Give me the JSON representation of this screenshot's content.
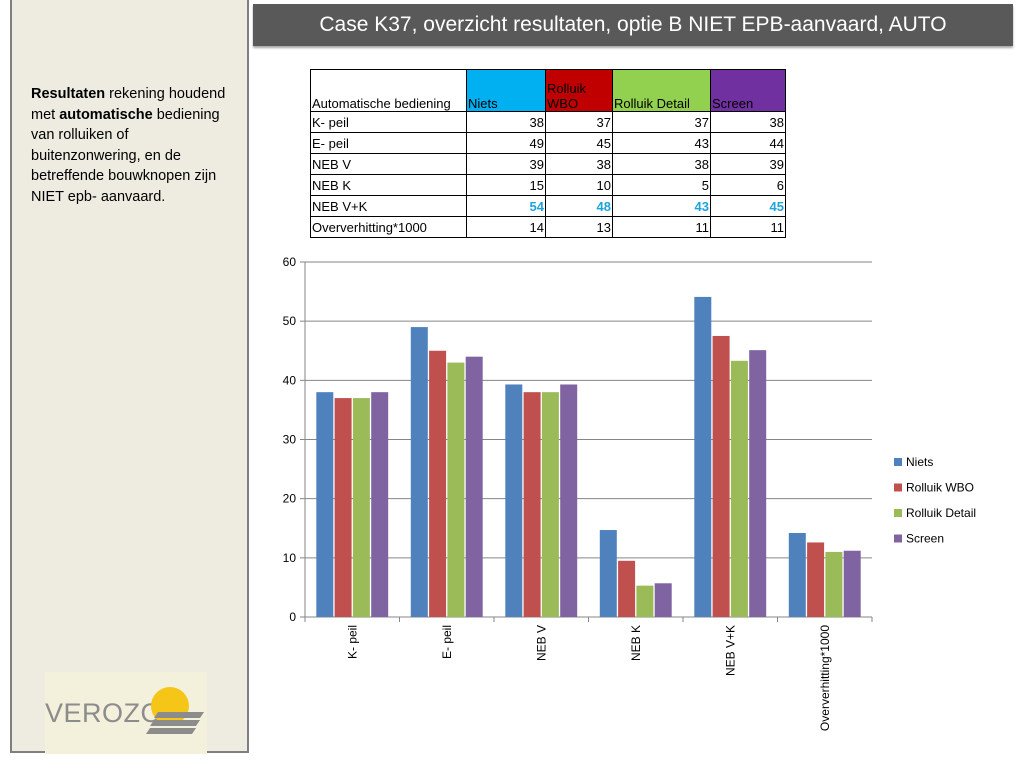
{
  "title": "Case K37, overzicht resultaten, optie B NIET EPB-aanvaard, AUTO",
  "sidebar": {
    "text_parts": [
      {
        "text": "Resultaten",
        "bold": true
      },
      {
        "text": " rekening houdend met ",
        "bold": false
      },
      {
        "text": "automatische",
        "bold": true
      },
      {
        "text": " bediening van rolluiken of buitenzonwering, en de betreffende bouwknopen zijn NIET epb- aanvaard.",
        "bold": false
      }
    ]
  },
  "logo": {
    "text": "VEROZO",
    "registered": "®"
  },
  "table": {
    "header": [
      "Automatische bediening",
      "Niets",
      "Rolluik WBO",
      "Rolluik Detail",
      "Screen"
    ],
    "header_colors": [
      "#ffffff",
      "#00b0f0",
      "#c00000",
      "#92d050",
      "#7030a0"
    ],
    "rows": [
      {
        "label": "K- peil",
        "values": [
          "38",
          "37",
          "37",
          "38"
        ],
        "highlight": false
      },
      {
        "label": "E- peil",
        "values": [
          "49",
          "45",
          "43",
          "44"
        ],
        "highlight": false
      },
      {
        "label": "NEB V",
        "values": [
          "39",
          "38",
          "38",
          "39"
        ],
        "highlight": false
      },
      {
        "label": "NEB K",
        "values": [
          "15",
          "10",
          "5",
          "6"
        ],
        "highlight": false
      },
      {
        "label": "NEB V+K",
        "values": [
          "54",
          "48",
          "43",
          "45"
        ],
        "highlight": true
      },
      {
        "label": "Oververhitting*1000",
        "values": [
          "14",
          "13",
          "11",
          "11"
        ],
        "highlight": false
      }
    ]
  },
  "chart_data": {
    "type": "bar",
    "categories": [
      "K- peil",
      "E- peil",
      "NEB V",
      "NEB K",
      "NEB V+K",
      "Oververhitting*1000"
    ],
    "series": [
      {
        "name": "Niets",
        "color": "#4f81bd",
        "values": [
          38,
          49,
          39.3,
          14.7,
          54.1,
          14.2
        ]
      },
      {
        "name": "Rolluik WBO",
        "color": "#c0504d",
        "values": [
          37,
          45,
          38,
          9.5,
          47.5,
          12.6
        ]
      },
      {
        "name": "Rolluik Detail",
        "color": "#9bbb59",
        "values": [
          37,
          43,
          38,
          5.3,
          43.3,
          11
        ]
      },
      {
        "name": "Screen",
        "color": "#8064a2",
        "values": [
          38,
          44,
          39.3,
          5.7,
          45.1,
          11.2
        ]
      }
    ],
    "ylim": [
      0,
      60
    ],
    "yticks": [
      "0",
      "10",
      "20",
      "30",
      "40",
      "50",
      "60"
    ],
    "grid": true,
    "legend_position": "right"
  }
}
